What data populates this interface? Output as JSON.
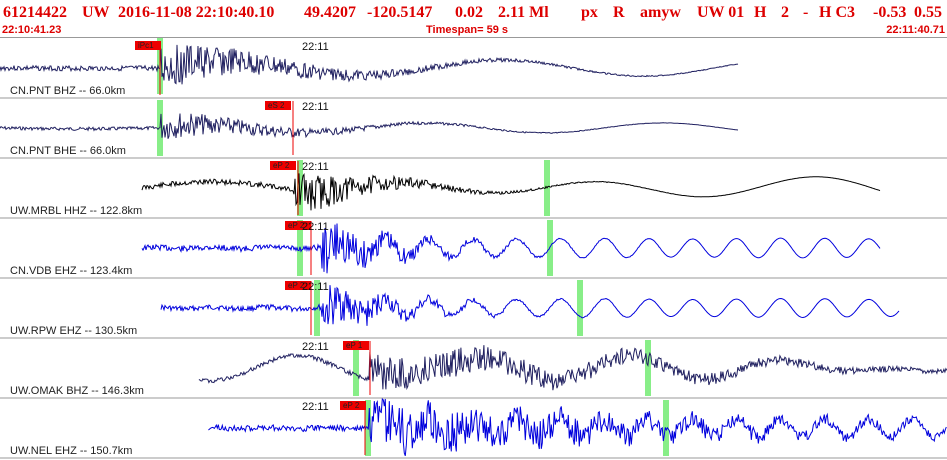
{
  "header": {
    "evid": "61214422",
    "net": "UW",
    "datetime": "2016-11-08 22:10:40.10",
    "lat": "49.4207",
    "lon": "-120.5147",
    "depth": "0.02",
    "mag": "2.11 Ml",
    "type": "px",
    "status": "R",
    "author": "amyw",
    "quality": "UW 01",
    "h1": "H",
    "n": "2",
    "dash": "-",
    "hc": "H C3",
    "v1": "-0.53",
    "v2": "0.55"
  },
  "subheader": {
    "start_time": "22:10:41.23",
    "timespan": "Timespan=  59 s",
    "end_time": "22:11:40.71"
  },
  "colors": {
    "header_text": "#dd0000",
    "trace_navy": "#202060",
    "trace_black": "#000000",
    "trace_blue": "#0000dd",
    "pick_red": "#ee0000",
    "pick_green": "#88ee88"
  },
  "channels": [
    {
      "label": "CN.PNT BHZ -- 66.0km",
      "minute_label": "22:11",
      "pick_label": "iPc1",
      "color": "navy",
      "start": 0.0,
      "end": 0.78,
      "onset": 0.17,
      "amp": 0.85,
      "decay": 0.14,
      "freq": 6.5,
      "pre": 0.03,
      "seed": 3
    },
    {
      "label": "CN.PNT BHE -- 66.0km",
      "minute_label": "22:11",
      "pick_label": "eS 2",
      "color": "navy",
      "start": 0.0,
      "end": 0.78,
      "onset": 0.17,
      "amp": 0.55,
      "decay": 0.12,
      "freq": 5.5,
      "pre": 0.06,
      "seed": 7
    },
    {
      "label": "UW.MRBL HHZ -- 122.8km",
      "minute_label": "22:11",
      "pick_label": "eP 2",
      "color": "black",
      "start": 0.15,
      "end": 0.93,
      "onset": 0.31,
      "amp": 0.9,
      "decay": 0.08,
      "freq": 5.0,
      "pre": 0.45,
      "seed": 11
    },
    {
      "label": "CN.VDB EHZ -- 123.4km",
      "minute_label": "22:11",
      "pick_label": "eP 2",
      "color": "blue",
      "start": 0.15,
      "end": 0.93,
      "onset": 0.34,
      "amp": 0.95,
      "decay": 0.07,
      "freq": 1.0,
      "pre": 0.05,
      "seed": 13
    },
    {
      "label": "UW.RPW EHZ -- 130.5km",
      "minute_label": "22:11",
      "pick_label": "eP 2",
      "color": "blue",
      "start": 0.17,
      "end": 0.95,
      "onset": 0.34,
      "amp": 0.9,
      "decay": 0.07,
      "freq": 1.0,
      "pre": 0.06,
      "seed": 17
    },
    {
      "label": "UW.OMAK BHZ -- 146.3km",
      "minute_label": "22:11",
      "pick_label": "eP 1",
      "color": "navy",
      "start": 0.21,
      "end": 1.0,
      "onset": 0.39,
      "amp": 0.7,
      "decay": 0.3,
      "freq": 3.0,
      "pre": 0.9,
      "seed": 19
    },
    {
      "label": "UW.NEL EHZ -- 150.7km",
      "minute_label": "22:11",
      "pick_label": "eP 2",
      "color": "blue",
      "start": 0.22,
      "end": 1.0,
      "onset": 0.39,
      "amp": 1.0,
      "decay": 0.3,
      "freq": 1.0,
      "pre": 0.05,
      "seed": 23
    }
  ]
}
